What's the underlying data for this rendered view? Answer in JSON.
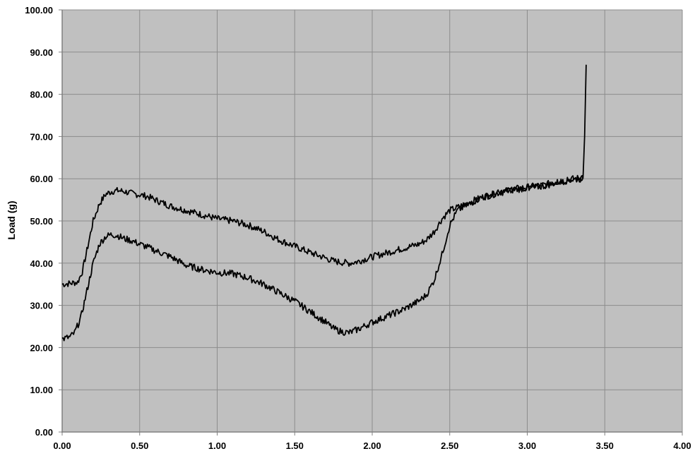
{
  "chart_data": {
    "type": "line",
    "title": "",
    "xlabel": "",
    "ylabel": "Load (g)",
    "xlim": [
      0,
      4
    ],
    "ylim": [
      0,
      100
    ],
    "x_ticks": [
      "0.00",
      "0.50",
      "1.00",
      "1.50",
      "2.00",
      "2.50",
      "3.00",
      "3.50",
      "4.00"
    ],
    "y_ticks": [
      "0.00",
      "10.00",
      "20.00",
      "30.00",
      "40.00",
      "50.00",
      "60.00",
      "70.00",
      "80.00",
      "90.00",
      "100.00"
    ],
    "grid": true,
    "legend": "none",
    "colors": {
      "plot_background": "#c0c0c0",
      "grid": "#8c8c8c",
      "line": "#000000",
      "axis": "#808080"
    },
    "series": [
      {
        "x": [
          0.0,
          0.05,
          0.1,
          0.13,
          0.16,
          0.2,
          0.24,
          0.28,
          0.32,
          0.36,
          0.4,
          0.45,
          0.5,
          0.55,
          0.6,
          0.7,
          0.8,
          0.9,
          1.0,
          1.1,
          1.2,
          1.3,
          1.4,
          1.5,
          1.6,
          1.7,
          1.75,
          1.8,
          1.85,
          1.9,
          2.0,
          2.1,
          2.2,
          2.3,
          2.35,
          2.4,
          2.45,
          2.5,
          2.55,
          2.6,
          2.7,
          2.8,
          2.9,
          3.0,
          3.1,
          3.2,
          3.3,
          3.36,
          3.37,
          3.38
        ],
        "y": [
          35.0,
          35.2,
          35.5,
          38.0,
          43.0,
          50.0,
          54.0,
          56.3,
          57.0,
          57.2,
          57.0,
          56.5,
          56.2,
          55.8,
          55.0,
          53.5,
          52.5,
          51.5,
          50.5,
          50.0,
          49.0,
          47.5,
          45.5,
          44.0,
          42.5,
          41.2,
          40.5,
          40.2,
          40.0,
          40.3,
          41.5,
          42.5,
          43.5,
          44.5,
          45.5,
          47.5,
          50.5,
          52.5,
          53.2,
          54.0,
          55.5,
          56.5,
          57.5,
          58.0,
          58.5,
          59.3,
          60.0,
          60.3,
          70.0,
          87.0
        ]
      },
      {
        "x": [
          0.0,
          0.05,
          0.08,
          0.12,
          0.16,
          0.2,
          0.24,
          0.28,
          0.32,
          0.36,
          0.4,
          0.45,
          0.5,
          0.55,
          0.6,
          0.7,
          0.8,
          0.9,
          1.0,
          1.1,
          1.2,
          1.3,
          1.4,
          1.5,
          1.6,
          1.7,
          1.75,
          1.8,
          1.85,
          1.9,
          2.0,
          2.1,
          2.2,
          2.3,
          2.35,
          2.4,
          2.45,
          2.5,
          2.55,
          2.6,
          2.7,
          2.8,
          2.9,
          3.0,
          3.1,
          3.2,
          3.3,
          3.36
        ],
        "y": [
          22.0,
          22.5,
          23.5,
          27.0,
          33.5,
          40.0,
          44.5,
          46.3,
          46.8,
          46.5,
          45.8,
          45.3,
          44.5,
          43.8,
          43.0,
          41.5,
          39.5,
          38.5,
          37.8,
          37.5,
          36.5,
          35.0,
          33.0,
          31.0,
          28.5,
          26.0,
          24.5,
          23.8,
          23.5,
          24.2,
          26.0,
          27.5,
          29.0,
          31.0,
          32.5,
          36.0,
          42.0,
          49.0,
          52.5,
          53.5,
          55.5,
          56.5,
          57.3,
          57.8,
          58.2,
          59.2,
          59.8,
          60.0
        ]
      }
    ]
  }
}
